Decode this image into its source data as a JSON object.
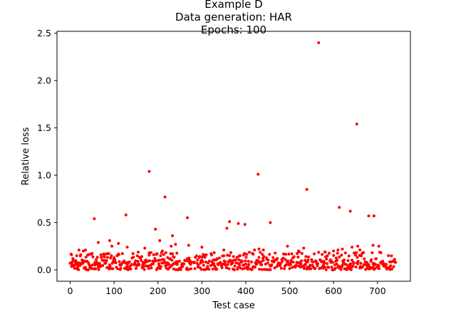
{
  "chart_data": {
    "type": "scatter",
    "title_lines": [
      "Example D",
      "Data generation: HAR",
      "Epochs: 100"
    ],
    "xlabel": "Test case",
    "ylabel": "Relative loss",
    "xlim": [
      -30,
      775
    ],
    "ylim": [
      -0.12,
      2.52
    ],
    "xticks": [
      0,
      100,
      200,
      300,
      400,
      500,
      600,
      700
    ],
    "yticks": [
      0.0,
      0.5,
      1.0,
      1.5,
      2.0,
      2.5
    ],
    "ytick_labels": [
      "0.0",
      "0.5",
      "1.0",
      "1.5",
      "2.0",
      "2.5"
    ],
    "grid": false,
    "marker_color": "#ff0000",
    "series": [
      {
        "points": [
          [
            566,
            2.4
          ],
          [
            653,
            1.54
          ],
          [
            180,
            1.04
          ],
          [
            428,
            1.01
          ],
          [
            539,
            0.85
          ],
          [
            216,
            0.77
          ],
          [
            613,
            0.66
          ],
          [
            638,
            0.62
          ],
          [
            127,
            0.58
          ],
          [
            680,
            0.57
          ],
          [
            692,
            0.57
          ],
          [
            55,
            0.54
          ],
          [
            267,
            0.55
          ],
          [
            363,
            0.51
          ],
          [
            383,
            0.49
          ],
          [
            398,
            0.48
          ],
          [
            456,
            0.5
          ],
          [
            357,
            0.44
          ],
          [
            194,
            0.43
          ],
          [
            233,
            0.36
          ],
          [
            90,
            0.31
          ],
          [
            204,
            0.31
          ],
          [
            64,
            0.29
          ],
          [
            110,
            0.28
          ],
          [
            240,
            0.27
          ],
          [
            270,
            0.26
          ],
          [
            95,
            0.25
          ],
          [
            130,
            0.24
          ],
          [
            690,
            0.26
          ],
          [
            703,
            0.25
          ],
          [
            642,
            0.24
          ],
          [
            655,
            0.25
          ],
          [
            170,
            0.23
          ],
          [
            230,
            0.25
          ],
          [
            300,
            0.24
          ],
          [
            495,
            0.25
          ],
          [
            532,
            0.23
          ],
          [
            620,
            0.22
          ],
          [
            660,
            0.21
          ],
          [
            20,
            0.21
          ],
          [
            30,
            0.2
          ],
          [
            35,
            0.21
          ],
          [
            180,
            0.18
          ],
          [
            210,
            0.2
          ],
          [
            350,
            0.21
          ],
          [
            420,
            0.21
          ],
          [
            430,
            0.22
          ],
          [
            440,
            0.21
          ],
          [
            520,
            0.2
          ],
          [
            580,
            0.19
          ],
          [
            600,
            0.2
          ],
          [
            610,
            0.21
          ],
          [
            3,
            0.16
          ],
          [
            15,
            0.15
          ]
        ]
      }
    ]
  }
}
